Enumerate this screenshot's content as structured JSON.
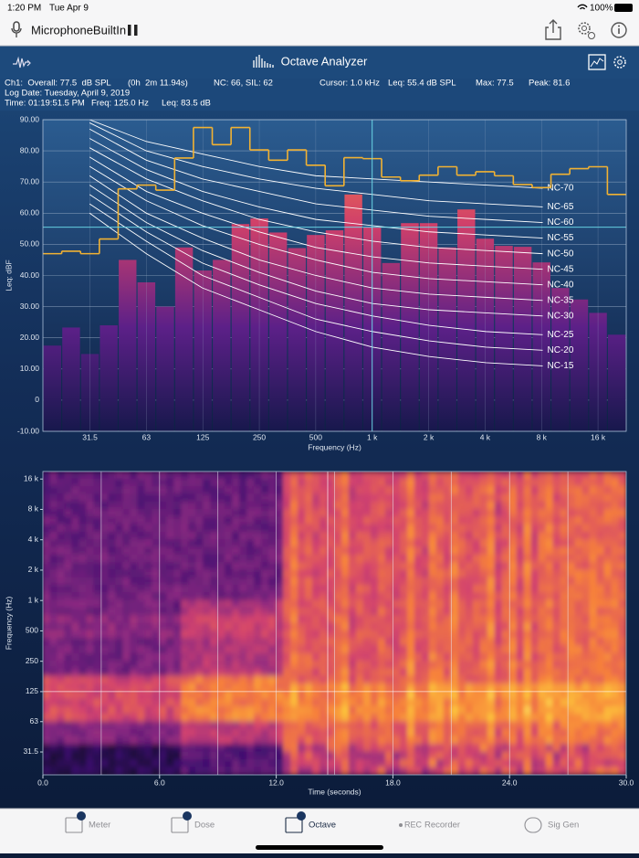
{
  "status_bar": {
    "time": "1:20 PM",
    "date": "Tue Apr 9",
    "battery": "100%"
  },
  "toolbar": {
    "device": "MicrophoneBuiltIn"
  },
  "nav": {
    "title": "Octave Analyzer"
  },
  "info": {
    "overall": "Ch1:  Overall: 77.5  dB SPL",
    "duration": "(0h  2m 11.94s)",
    "nc": "NC: 66, SIL: 62",
    "cursor": "Cursor: 1.0 kHz",
    "leq": "Leq: 55.4 dB SPL",
    "max": "Max: 77.5",
    "peak": "Peak: 81.6",
    "log_date": "Log Date: Tuesday, April 9, 2019",
    "time": "Time: 01:19:51.5 PM",
    "freq": "Freq: 125.0 Hz",
    "freq_leq": "Leq: 83.5 dB"
  },
  "chart_data": [
    {
      "type": "bar",
      "y_label": "Leq: dBF",
      "x_label": "Frequency (Hz)",
      "categories": [
        null,
        null,
        "31.5",
        null,
        null,
        "63",
        null,
        null,
        "125",
        null,
        null,
        "250",
        null,
        null,
        "500",
        null,
        null,
        "1 k",
        null,
        null,
        "2 k",
        null,
        null,
        "4 k",
        null,
        null,
        "8 k",
        null,
        null,
        "16 k",
        null
      ],
      "values": [
        17.5,
        23.3,
        14.8,
        24,
        45,
        37.8,
        30,
        49,
        41.6,
        45,
        56.5,
        58.3,
        53.8,
        48.8,
        53,
        54.5,
        66,
        55.5,
        44,
        56.8,
        56.8,
        49,
        61.2,
        51.8,
        49.5,
        49.2,
        44.2,
        36,
        32.3,
        28,
        21
      ],
      "max_values": [
        47,
        47.8,
        47,
        51.7,
        67.8,
        69,
        67.4,
        77.7,
        87.5,
        82,
        87.5,
        80.3,
        77,
        80.3,
        75.4,
        68.8,
        77.8,
        77.5,
        71.6,
        70.4,
        72.2,
        74.9,
        72.2,
        73.3,
        72,
        69.2,
        68.2,
        72.5,
        74.3,
        74.9,
        66
      ],
      "bar_colors": [
        "#ff8c3c",
        "#d0406a",
        "#5c2088",
        "#17184c"
      ],
      "max_color": "#f2b232",
      "nc_color": "#ffffff",
      "ylim": [
        -10,
        90
      ],
      "yticks": [
        {
          "value": 90,
          "label": "90.00"
        },
        {
          "value": 80,
          "label": "80.00"
        },
        {
          "value": 70,
          "label": "70.00"
        },
        {
          "value": 60,
          "label": "60.00"
        },
        {
          "value": 50,
          "label": "50.00"
        },
        {
          "value": 40,
          "label": "40.00"
        },
        {
          "value": 30,
          "label": "30.00"
        },
        {
          "value": 20,
          "label": "20.00"
        },
        {
          "value": 10,
          "label": "10.00"
        },
        0,
        {
          "value": -10,
          "label": "-10.00"
        }
      ],
      "grid": true,
      "nc_xlim": [
        17.8,
        22200
      ],
      "nc_x": [
        31.5,
        63,
        125,
        250,
        500,
        1000,
        2000,
        4000,
        8000
      ],
      "nc_curves": [
        {
          "name": "NC-70",
          "values": [
            90,
            83,
            79,
            75,
            72,
            71,
            70,
            69,
            68
          ]
        },
        {
          "name": "NC-65",
          "values": [
            89,
            80,
            75,
            71,
            68,
            66,
            64,
            63,
            62
          ]
        },
        {
          "name": "NC-60",
          "values": [
            87,
            77,
            71,
            67,
            63,
            61,
            59,
            58,
            57
          ]
        },
        {
          "name": "NC-55",
          "values": [
            84,
            74,
            67,
            62,
            58,
            56,
            54,
            53,
            52
          ]
        },
        {
          "name": "NC-50",
          "values": [
            81,
            71,
            64,
            58,
            54,
            51,
            49,
            48,
            47
          ]
        },
        {
          "name": "NC-45",
          "values": [
            78,
            67,
            60,
            54,
            49,
            46,
            44,
            43,
            42
          ]
        },
        {
          "name": "NC-40",
          "values": [
            75,
            64,
            56,
            50,
            45,
            41,
            39,
            38,
            37
          ]
        },
        {
          "name": "NC-35",
          "values": [
            72,
            60,
            52,
            45,
            40,
            36,
            34,
            33,
            32
          ]
        },
        {
          "name": "NC-30",
          "values": [
            69,
            57,
            48,
            41,
            35,
            31,
            29,
            28,
            27
          ]
        },
        {
          "name": "NC-25",
          "values": [
            66,
            54,
            44,
            37,
            31,
            27,
            24,
            22,
            21
          ]
        },
        {
          "name": "NC-20",
          "values": [
            63,
            51,
            40,
            33,
            26,
            22,
            19,
            17,
            16
          ]
        },
        {
          "name": "NC-15",
          "values": [
            60,
            47,
            36,
            29,
            22,
            17,
            14,
            12,
            11
          ]
        }
      ]
    },
    {
      "type": "spectrogram",
      "x_label": "Time (seconds)",
      "y_label": "Frequency (Hz)",
      "log_y": true,
      "xlim": [
        0,
        30
      ],
      "xticks": [
        {
          "value": 0,
          "label": "0.0"
        },
        {
          "value": 6,
          "label": "6.0"
        },
        {
          "value": 12,
          "label": "12.0"
        },
        {
          "value": 18,
          "label": "18.0"
        },
        {
          "value": 24,
          "label": "24.0"
        },
        {
          "value": 30,
          "label": "30.0"
        }
      ],
      "ylim": [
        18.7,
        19000
      ],
      "yticks": [
        {
          "value": 16000,
          "label": "16 k"
        },
        {
          "value": 8000,
          "label": "8 k"
        },
        {
          "value": 4000,
          "label": "4 k"
        },
        {
          "value": 2000,
          "label": "2 k"
        },
        {
          "value": 1000,
          "label": "1 k"
        },
        500,
        250,
        125,
        63,
        31.5
      ]
    }
  ],
  "tabs": [
    {
      "label": "Meter"
    },
    {
      "label": "Dose"
    },
    {
      "label": "Octave"
    },
    {
      "prefix": "REC",
      "label": "Recorder"
    },
    {
      "label": "Sig Gen"
    }
  ]
}
